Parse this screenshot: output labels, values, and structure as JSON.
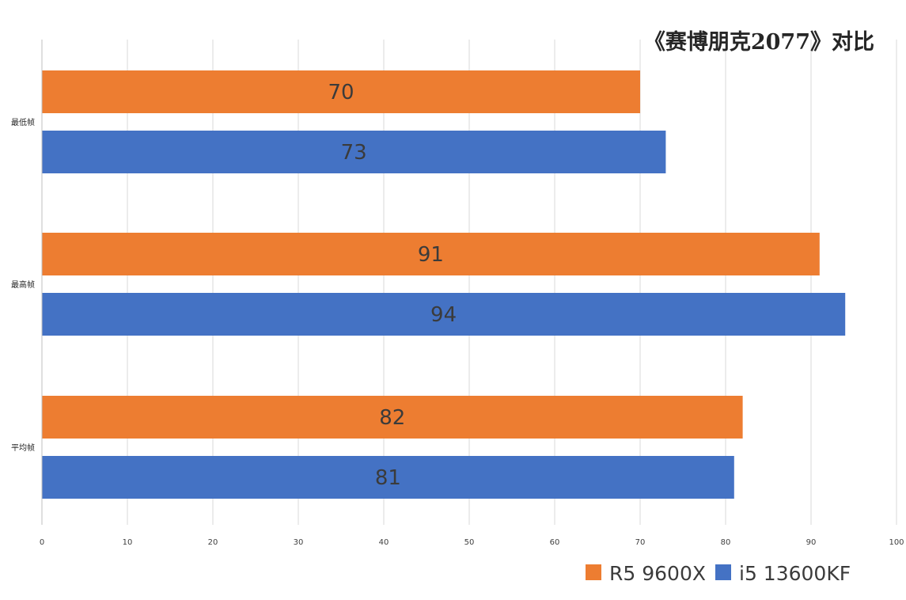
{
  "chart_data": {
    "type": "bar",
    "orientation": "horizontal",
    "title": "《赛博朋克2077》对比",
    "categories": [
      "最低帧",
      "最高帧",
      "平均帧"
    ],
    "series": [
      {
        "name": "R5 9600X",
        "color": "#ED7D31",
        "values": [
          70,
          91,
          82
        ]
      },
      {
        "name": "i5 13600KF",
        "color": "#4472C4",
        "values": [
          73,
          94,
          81
        ]
      }
    ],
    "xlim": [
      0,
      100
    ],
    "x_ticks": [
      0,
      10,
      20,
      30,
      40,
      50,
      60,
      70,
      80,
      90,
      100
    ],
    "grid": true,
    "legend_position": "bottom-right",
    "data_labels": true
  }
}
